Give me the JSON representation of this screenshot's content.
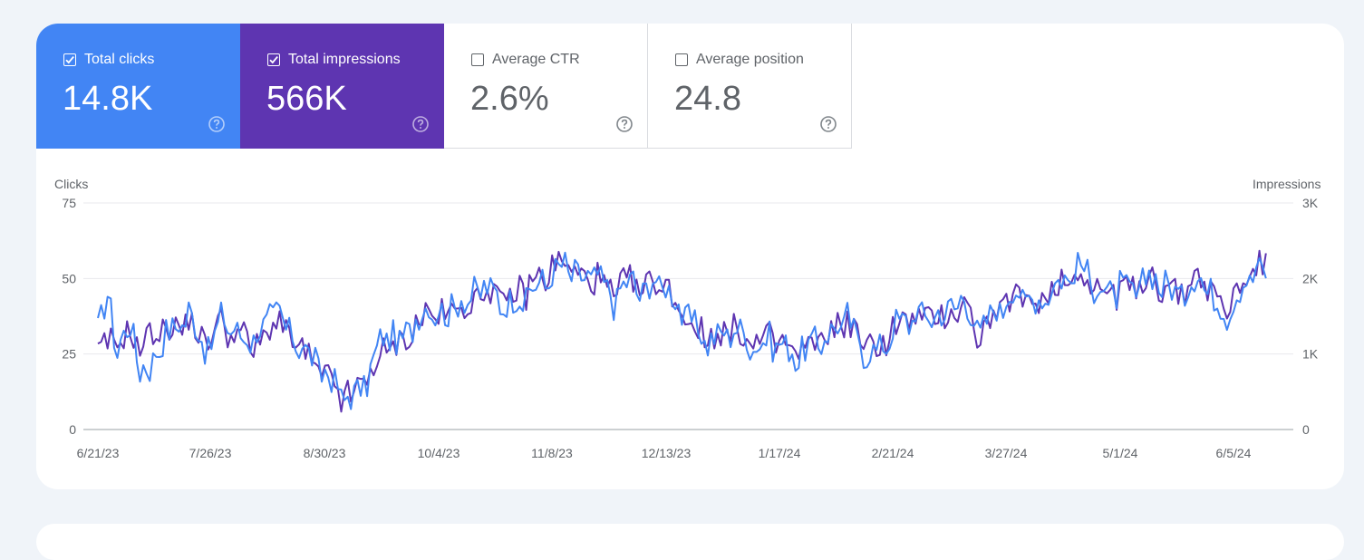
{
  "metrics": [
    {
      "key": "clicks",
      "label": "Total clicks",
      "value": "14.8K",
      "checked": true,
      "color": "#4285f4"
    },
    {
      "key": "impressions",
      "label": "Total impressions",
      "value": "566K",
      "checked": true,
      "color": "#5e35b1"
    },
    {
      "key": "ctr",
      "label": "Average CTR",
      "value": "2.6%",
      "checked": false
    },
    {
      "key": "position",
      "label": "Average position",
      "value": "24.8",
      "checked": false
    }
  ],
  "chart": {
    "left_axis_title": "Clicks",
    "right_axis_title": "Impressions"
  },
  "chart_data": {
    "type": "line",
    "x_start": "6/21/23",
    "x_end": "6/15/24",
    "x_ticks": [
      "6/21/23",
      "7/26/23",
      "8/30/23",
      "10/4/23",
      "11/8/23",
      "12/13/23",
      "1/17/24",
      "2/21/24",
      "3/27/24",
      "5/1/24",
      "6/5/24"
    ],
    "y_left": {
      "label": "Clicks",
      "ticks": [
        "0",
        "25",
        "50",
        "75"
      ],
      "range": [
        0,
        75
      ]
    },
    "y_right": {
      "label": "Impressions",
      "ticks": [
        "0",
        "1K",
        "2K",
        "3K"
      ],
      "range": [
        0,
        3000
      ]
    },
    "grid": true,
    "series": [
      {
        "name": "Clicks",
        "color": "#4285f4",
        "axis": "left",
        "anchors": [
          [
            0,
            33
          ],
          [
            3,
            45
          ],
          [
            6,
            28
          ],
          [
            10,
            35
          ],
          [
            13,
            22
          ],
          [
            16,
            20
          ],
          [
            20,
            32
          ],
          [
            24,
            34
          ],
          [
            28,
            40
          ],
          [
            32,
            30
          ],
          [
            35,
            28
          ],
          [
            38,
            38
          ],
          [
            41,
            35
          ],
          [
            45,
            30
          ],
          [
            49,
            33
          ],
          [
            52,
            35
          ],
          [
            55,
            42
          ],
          [
            58,
            33
          ],
          [
            62,
            30
          ],
          [
            65,
            25
          ],
          [
            68,
            22
          ],
          [
            72,
            17
          ],
          [
            75,
            13
          ],
          [
            78,
            11
          ],
          [
            81,
            14
          ],
          [
            84,
            20
          ],
          [
            87,
            30
          ],
          [
            90,
            33
          ],
          [
            93,
            28
          ],
          [
            96,
            35
          ],
          [
            99,
            38
          ],
          [
            102,
            42
          ],
          [
            105,
            40
          ],
          [
            108,
            38
          ],
          [
            111,
            45
          ],
          [
            114,
            42
          ],
          [
            117,
            48
          ],
          [
            120,
            47
          ],
          [
            123,
            45
          ],
          [
            126,
            42
          ],
          [
            129,
            44
          ],
          [
            132,
            45
          ],
          [
            135,
            48
          ],
          [
            138,
            50
          ],
          [
            141,
            53
          ],
          [
            144,
            55
          ],
          [
            147,
            52
          ],
          [
            150,
            50
          ],
          [
            153,
            53
          ],
          [
            156,
            48
          ],
          [
            159,
            44
          ],
          [
            162,
            48
          ],
          [
            165,
            50
          ],
          [
            168,
            45
          ],
          [
            171,
            50
          ],
          [
            174,
            49
          ],
          [
            177,
            45
          ],
          [
            180,
            40
          ],
          [
            183,
            36
          ],
          [
            186,
            32
          ],
          [
            189,
            30
          ],
          [
            192,
            32
          ],
          [
            195,
            34
          ],
          [
            198,
            33
          ],
          [
            201,
            30
          ],
          [
            204,
            28
          ],
          [
            207,
            31
          ],
          [
            210,
            29
          ],
          [
            213,
            27
          ],
          [
            216,
            25
          ],
          [
            219,
            28
          ],
          [
            222,
            30
          ],
          [
            225,
            32
          ],
          [
            228,
            35
          ],
          [
            231,
            38
          ],
          [
            234,
            30
          ],
          [
            237,
            27
          ],
          [
            240,
            26
          ],
          [
            243,
            30
          ],
          [
            246,
            36
          ],
          [
            249,
            36
          ],
          [
            252,
            40
          ],
          [
            255,
            37
          ],
          [
            258,
            40
          ],
          [
            261,
            38
          ],
          [
            264,
            43
          ],
          [
            267,
            44
          ],
          [
            270,
            36
          ],
          [
            273,
            34
          ],
          [
            276,
            40
          ],
          [
            279,
            42
          ],
          [
            282,
            47
          ],
          [
            285,
            45
          ],
          [
            288,
            43
          ],
          [
            291,
            44
          ],
          [
            294,
            48
          ],
          [
            297,
            50
          ],
          [
            300,
            52
          ],
          [
            303,
            55
          ],
          [
            306,
            50
          ],
          [
            309,
            48
          ],
          [
            312,
            45
          ],
          [
            315,
            48
          ],
          [
            318,
            46
          ],
          [
            321,
            47
          ],
          [
            324,
            52
          ],
          [
            327,
            50
          ],
          [
            330,
            48
          ],
          [
            333,
            45
          ],
          [
            336,
            48
          ],
          [
            339,
            52
          ],
          [
            342,
            48
          ],
          [
            345,
            42
          ],
          [
            348,
            40
          ],
          [
            351,
            45
          ],
          [
            354,
            50
          ],
          [
            357,
            54
          ],
          [
            360,
            52
          ],
          [
            363,
            55
          ],
          [
            366,
            52
          ]
        ],
        "noise": 5
      },
      {
        "name": "Impressions",
        "color": "#5e35b1",
        "axis": "right",
        "anchors": [
          [
            0,
            1000
          ],
          [
            3,
            1150
          ],
          [
            6,
            1200
          ],
          [
            10,
            1300
          ],
          [
            13,
            1150
          ],
          [
            16,
            1250
          ],
          [
            20,
            1400
          ],
          [
            24,
            1350
          ],
          [
            28,
            1500
          ],
          [
            32,
            1200
          ],
          [
            35,
            1300
          ],
          [
            38,
            1450
          ],
          [
            41,
            1350
          ],
          [
            45,
            1250
          ],
          [
            49,
            1100
          ],
          [
            52,
            1250
          ],
          [
            55,
            1600
          ],
          [
            58,
            1250
          ],
          [
            62,
            1150
          ],
          [
            65,
            950
          ],
          [
            68,
            800
          ],
          [
            72,
            650
          ],
          [
            75,
            500
          ],
          [
            78,
            450
          ],
          [
            81,
            620
          ],
          [
            84,
            800
          ],
          [
            87,
            1000
          ],
          [
            90,
            1100
          ],
          [
            93,
            1150
          ],
          [
            96,
            1300
          ],
          [
            99,
            1450
          ],
          [
            102,
            1600
          ],
          [
            105,
            1550
          ],
          [
            108,
            1500
          ],
          [
            111,
            1700
          ],
          [
            114,
            1650
          ],
          [
            117,
            1800
          ],
          [
            120,
            1900
          ],
          [
            123,
            1800
          ],
          [
            126,
            1700
          ],
          [
            129,
            1850
          ],
          [
            132,
            1900
          ],
          [
            135,
            2000
          ],
          [
            138,
            2100
          ],
          [
            141,
            2200
          ],
          [
            144,
            2250
          ],
          [
            147,
            2100
          ],
          [
            150,
            2000
          ],
          [
            153,
            2100
          ],
          [
            156,
            1900
          ],
          [
            159,
            1800
          ],
          [
            162,
            1950
          ],
          [
            165,
            2000
          ],
          [
            168,
            1850
          ],
          [
            171,
            2000
          ],
          [
            174,
            1950
          ],
          [
            177,
            1800
          ],
          [
            180,
            1600
          ],
          [
            183,
            1450
          ],
          [
            186,
            1300
          ],
          [
            189,
            1250
          ],
          [
            192,
            1300
          ],
          [
            195,
            1350
          ],
          [
            198,
            1300
          ],
          [
            201,
            1200
          ],
          [
            204,
            1150
          ],
          [
            207,
            1250
          ],
          [
            210,
            1180
          ],
          [
            213,
            1100
          ],
          [
            216,
            1050
          ],
          [
            219,
            1100
          ],
          [
            222,
            1200
          ],
          [
            225,
            1300
          ],
          [
            228,
            1400
          ],
          [
            231,
            1500
          ],
          [
            234,
            1250
          ],
          [
            237,
            1150
          ],
          [
            240,
            1100
          ],
          [
            243,
            1250
          ],
          [
            246,
            1400
          ],
          [
            249,
            1450
          ],
          [
            252,
            1550
          ],
          [
            255,
            1450
          ],
          [
            258,
            1550
          ],
          [
            261,
            1500
          ],
          [
            264,
            1650
          ],
          [
            267,
            1700
          ],
          [
            270,
            1400
          ],
          [
            273,
            1300
          ],
          [
            276,
            1550
          ],
          [
            279,
            1650
          ],
          [
            282,
            1800
          ],
          [
            285,
            1750
          ],
          [
            288,
            1700
          ],
          [
            291,
            1750
          ],
          [
            294,
            1900
          ],
          [
            297,
            2000
          ],
          [
            300,
            2050
          ],
          [
            303,
            2150
          ],
          [
            306,
            1950
          ],
          [
            309,
            1900
          ],
          [
            312,
            1800
          ],
          [
            315,
            1950
          ],
          [
            318,
            1850
          ],
          [
            321,
            1900
          ],
          [
            324,
            2100
          ],
          [
            327,
            2000
          ],
          [
            330,
            1900
          ],
          [
            333,
            1800
          ],
          [
            336,
            1950
          ],
          [
            339,
            2100
          ],
          [
            342,
            1950
          ],
          [
            345,
            1700
          ],
          [
            348,
            1650
          ],
          [
            351,
            1850
          ],
          [
            354,
            2050
          ],
          [
            357,
            2200
          ],
          [
            360,
            2150
          ],
          [
            363,
            2250
          ],
          [
            366,
            2150
          ]
        ],
        "noise": 200
      }
    ]
  }
}
